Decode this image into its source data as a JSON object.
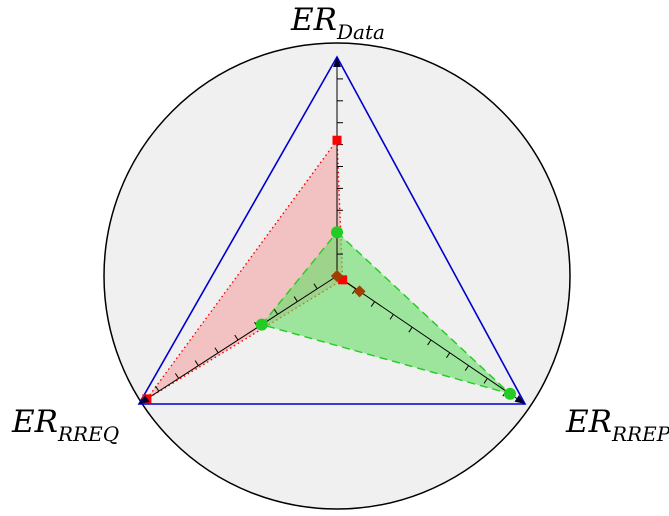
{
  "chart_data": {
    "type": "radar",
    "axes": [
      {
        "main": "ER",
        "sub": "Data"
      },
      {
        "main": "ER",
        "sub": "RREP"
      },
      {
        "main": "ER",
        "sub": "RREQ"
      }
    ],
    "range": [
      0,
      1
    ],
    "ticks": 10,
    "grid": false,
    "series": [
      {
        "values": [
          0.62,
          0.03,
          0.96
        ],
        "color": "#ff0000",
        "fill": "#f4a3a3",
        "line": "dotted",
        "marker": "square"
      },
      {
        "values": [
          0.2,
          0.92,
          0.38
        ],
        "color": "#22cc22",
        "fill": "#66dd66",
        "line": "dashed",
        "marker": "circle"
      },
      {
        "values": [
          0.0,
          0.12,
          0.0
        ],
        "color": "#a04000",
        "fill": "#a04000",
        "line": "solid",
        "marker": "diamond"
      }
    ],
    "colors": {
      "background_circle": "#f0f0f0",
      "frame_triangle": "#0000cc",
      "axis": "#000000"
    }
  }
}
